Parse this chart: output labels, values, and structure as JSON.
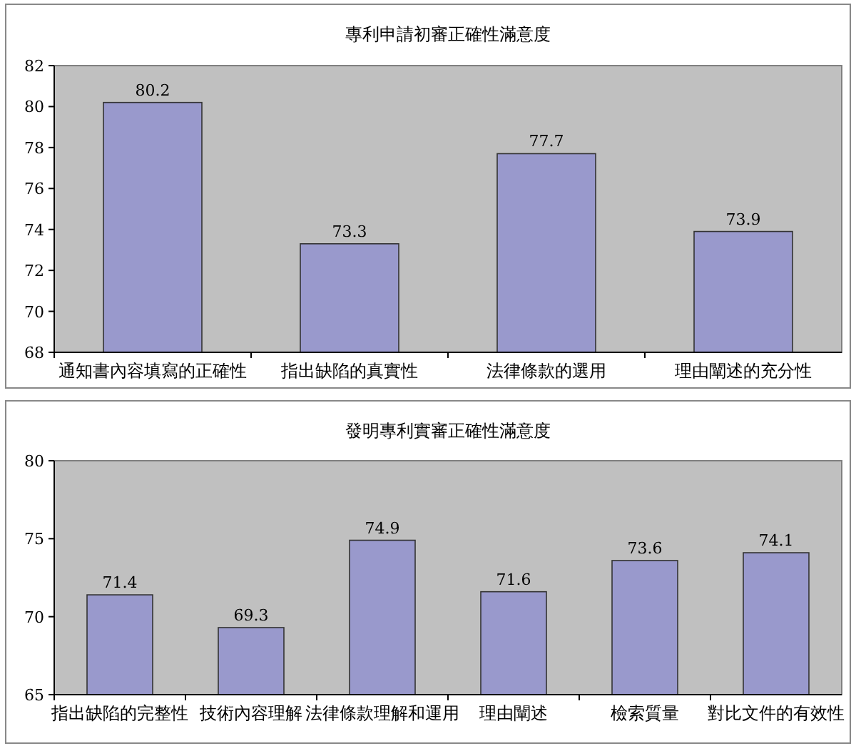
{
  "chart_data": [
    {
      "type": "bar",
      "title": "專利申請初審正確性滿意度",
      "categories": [
        "通知書內容填寫的正確性",
        "指出缺陷的真實性",
        "法律條款的選用",
        "理由闡述的充分性"
      ],
      "values": [
        80.2,
        73.3,
        77.7,
        73.9
      ],
      "color": "#9999cc",
      "ylim": [
        68,
        82
      ],
      "yticks": [
        68,
        70,
        72,
        74,
        76,
        78,
        80,
        82
      ],
      "data_labels": true
    },
    {
      "type": "bar",
      "title": "發明專利實審正確性滿意度",
      "categories": [
        "指出缺陷的完整性",
        "技術內容理解",
        "法律條款理解和運用",
        "理由闡述",
        "檢索質量",
        "對比文件的有效性"
      ],
      "values": [
        71.4,
        69.3,
        74.9,
        71.6,
        73.6,
        74.1
      ],
      "color": "#9999cc",
      "ylim": [
        65,
        80
      ],
      "yticks": [
        65,
        70,
        75,
        80
      ],
      "data_labels": true
    }
  ]
}
